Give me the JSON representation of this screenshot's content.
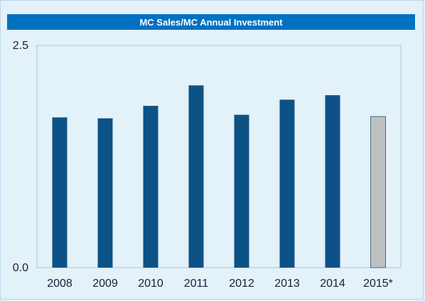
{
  "chart_data": {
    "type": "bar",
    "title": "MC Sales/MC Annual Investment",
    "categories": [
      "2008",
      "2009",
      "2010",
      "2011",
      "2012",
      "2013",
      "2014",
      "2015*"
    ],
    "values": [
      1.69,
      1.68,
      1.82,
      2.05,
      1.72,
      1.89,
      1.94,
      1.7
    ],
    "ylim": [
      0,
      2.5
    ],
    "ytick_labels": [
      "0.0",
      "2.5"
    ],
    "yticks": [
      0,
      2.5
    ],
    "grid": false,
    "colors": {
      "bar": "#0c5286",
      "projected_bar": "#bfc0c2",
      "title_background": "#0071c0",
      "plot_border": "#a9c7dc"
    },
    "projected_categories": [
      "2015*"
    ]
  }
}
